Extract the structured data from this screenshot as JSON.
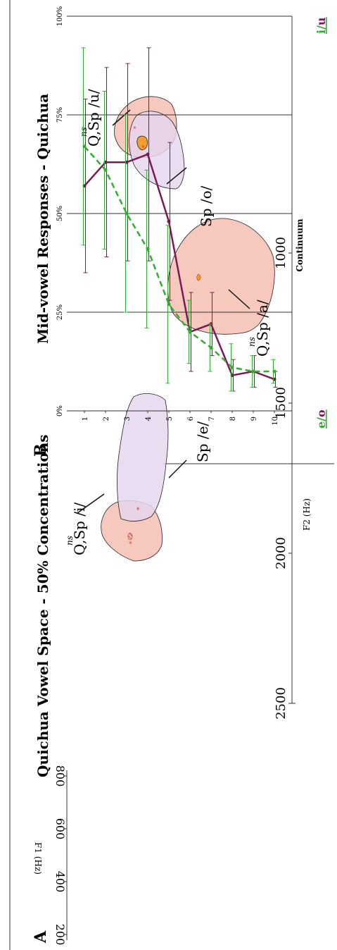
{
  "panel_a": {
    "letter": "A",
    "title": "Quichua Vowel Space - 50% Concentrations",
    "xlabel": "F2 (Hz)",
    "ylabel": "F1 (Hz)",
    "x_ticks": [
      "2500",
      "2000",
      "1500",
      "1000"
    ],
    "y_ticks": [
      "200",
      "400",
      "600",
      "800"
    ],
    "labels": {
      "qi_q": "Q",
      "qi_ns": "ns",
      "qi_rest": ",Sp /i/",
      "spe": "Sp /e/",
      "qa_q": "Q",
      "qa_ns": "ns",
      "qa_rest": ",Sp /a/",
      "qu_q": "Q",
      "qu_ns": "ns",
      "qu_rest": ",Sp /u/",
      "spo": "Sp /o/"
    },
    "colors": {
      "q_fill": "#f7c8bd",
      "sp_fill": "#e6d6ef",
      "marker": "#d62e1f",
      "center_fill": "#f0a030"
    }
  },
  "panel_b": {
    "letter": "B",
    "title": "Mid-vowel Responses - Quichua",
    "xlabel": "Continuum",
    "end_left": "e/o",
    "end_right": "i/u"
  },
  "chart_data": [
    {
      "type": "scatter",
      "title": "Quichua Vowel Space - 50% Concentrations",
      "xlabel": "F2 (Hz)",
      "ylabel": "F1 (Hz)",
      "xlim": [
        2500,
        1000
      ],
      "ylim": [
        200,
        800
      ],
      "x_reversed": true,
      "y_reversed": true,
      "series": [
        {
          "name": "Q,Sp /i/",
          "x": [
            2390
          ],
          "y": [
            480
          ]
        },
        {
          "name": "Sp /e/",
          "x": [
            2250
          ],
          "y": [
            440
          ]
        },
        {
          "name": "Q,Sp /a/",
          "x": [
            1800
          ],
          "y": [
            720
          ]
        },
        {
          "name": "Q,Sp /u/",
          "x": [
            1190
          ],
          "y": [
            440
          ]
        },
        {
          "name": "Sp /o/",
          "x": [
            1175
          ],
          "y": [
            455
          ]
        }
      ]
    },
    {
      "type": "line",
      "title": "Mid-vowel Responses - Quichua",
      "xlabel": "Continuum",
      "ylim": [
        0,
        100
      ],
      "y_ticks": [
        "0%",
        "25%",
        "50%",
        "75%",
        "100%"
      ],
      "x": [
        1,
        2,
        3,
        4,
        5,
        6,
        7,
        8,
        9,
        10
      ],
      "series": [
        {
          "name": "e/o",
          "color": "#7a1a55",
          "style": "solid",
          "values": [
            57,
            63,
            63,
            65,
            48,
            20,
            22,
            9,
            10,
            8
          ],
          "err": [
            22,
            24,
            25,
            27,
            20,
            10,
            8,
            4,
            4,
            2
          ]
        },
        {
          "name": "i/u",
          "color": "#2eb02e",
          "style": "dashed",
          "values": [
            67,
            61,
            50,
            41,
            27,
            20,
            16,
            11,
            10,
            10
          ],
          "err": [
            25,
            20,
            25,
            20,
            20,
            8,
            6,
            6,
            4,
            3
          ]
        }
      ]
    }
  ]
}
